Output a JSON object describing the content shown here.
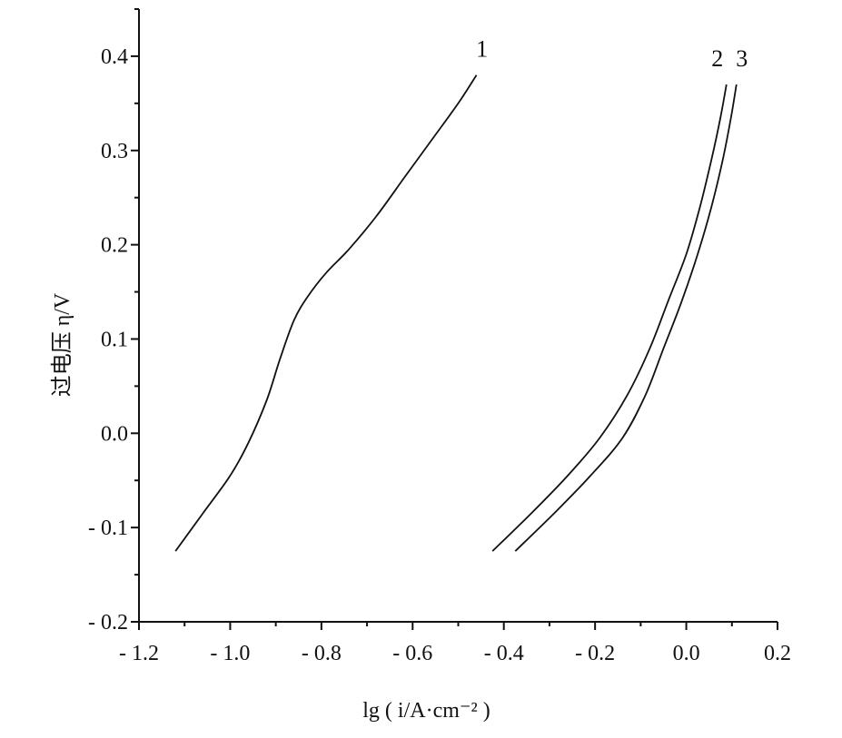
{
  "chart_data": {
    "type": "line",
    "xlabel": "lg ( i/A·cm⁻² )",
    "ylabel": "过电压 η/V",
    "xlim": [
      -1.2,
      0.2
    ],
    "ylim": [
      -0.2,
      0.45
    ],
    "xticks": [
      -1.2,
      -1.0,
      -0.8,
      -0.6,
      -0.4,
      -0.2,
      0.0,
      0.2
    ],
    "xtick_labels": [
      "- 1.2",
      "- 1.0",
      "- 0.8",
      "- 0.6",
      "- 0.4",
      "- 0.2",
      "0.0",
      "0.2"
    ],
    "yticks": [
      -0.2,
      -0.1,
      0.0,
      0.1,
      0.2,
      0.3,
      0.4
    ],
    "ytick_labels": [
      "- 0.2",
      "- 0.1",
      "0.0",
      "0.1",
      "0.2",
      "0.3",
      "0.4"
    ],
    "grid": false,
    "legend": "none",
    "series": [
      {
        "name": "1",
        "points": [
          [
            -1.12,
            -0.125
          ],
          [
            -1.06,
            -0.085
          ],
          [
            -1.0,
            -0.045
          ],
          [
            -0.96,
            -0.01
          ],
          [
            -0.92,
            0.035
          ],
          [
            -0.89,
            0.08
          ],
          [
            -0.86,
            0.12
          ],
          [
            -0.83,
            0.145
          ],
          [
            -0.79,
            0.17
          ],
          [
            -0.74,
            0.195
          ],
          [
            -0.68,
            0.23
          ],
          [
            -0.62,
            0.27
          ],
          [
            -0.56,
            0.31
          ],
          [
            -0.5,
            0.35
          ],
          [
            -0.46,
            0.38
          ]
        ]
      },
      {
        "name": "2",
        "points": [
          [
            -0.425,
            -0.125
          ],
          [
            -0.34,
            -0.085
          ],
          [
            -0.26,
            -0.045
          ],
          [
            -0.19,
            -0.005
          ],
          [
            -0.13,
            0.04
          ],
          [
            -0.08,
            0.09
          ],
          [
            -0.04,
            0.14
          ],
          [
            0.0,
            0.19
          ],
          [
            0.03,
            0.24
          ],
          [
            0.055,
            0.29
          ],
          [
            0.075,
            0.335
          ],
          [
            0.088,
            0.37
          ]
        ]
      },
      {
        "name": "3",
        "points": [
          [
            -0.375,
            -0.125
          ],
          [
            -0.29,
            -0.085
          ],
          [
            -0.21,
            -0.045
          ],
          [
            -0.14,
            -0.005
          ],
          [
            -0.09,
            0.04
          ],
          [
            -0.05,
            0.09
          ],
          [
            -0.01,
            0.14
          ],
          [
            0.025,
            0.19
          ],
          [
            0.055,
            0.24
          ],
          [
            0.08,
            0.29
          ],
          [
            0.098,
            0.335
          ],
          [
            0.11,
            0.37
          ]
        ]
      }
    ]
  }
}
